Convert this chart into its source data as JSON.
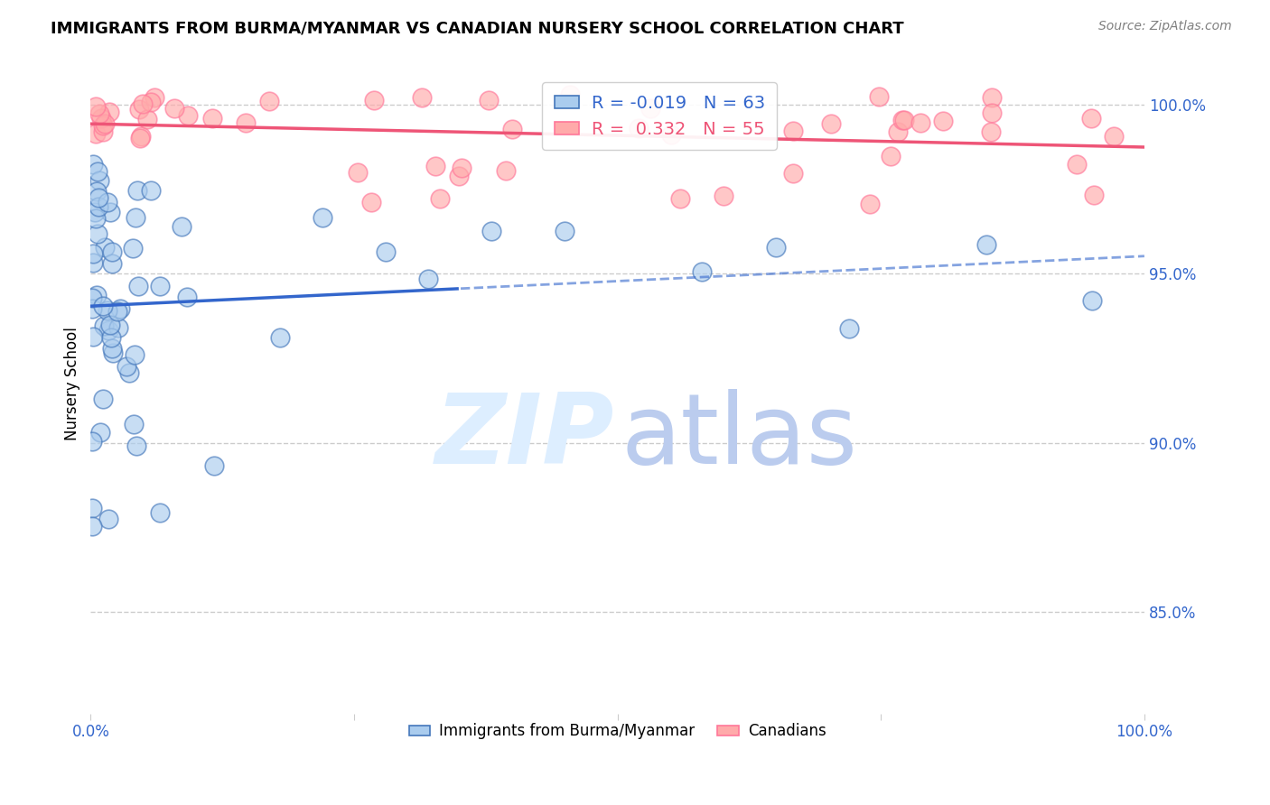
{
  "title": "IMMIGRANTS FROM BURMA/MYANMAR VS CANADIAN NURSERY SCHOOL CORRELATION CHART",
  "source": "Source: ZipAtlas.com",
  "ylabel": "Nursery School",
  "legend_label1": "Immigrants from Burma/Myanmar",
  "legend_label2": "Canadians",
  "r_blue": -0.019,
  "n_blue": 63,
  "r_pink": 0.332,
  "n_pink": 55,
  "ytick_labels": [
    "85.0%",
    "90.0%",
    "95.0%",
    "100.0%"
  ],
  "ytick_values": [
    0.85,
    0.9,
    0.95,
    1.0
  ],
  "xlim": [
    0.0,
    1.0
  ],
  "ylim": [
    0.82,
    1.015
  ],
  "blue_fill": "#AACCEE",
  "blue_edge": "#4477BB",
  "pink_fill": "#FFAAAA",
  "pink_edge": "#FF7799",
  "blue_line_color": "#3366CC",
  "pink_line_color": "#EE5577",
  "grid_color": "#CCCCCC",
  "watermark_zip_color": "#DDEEFF",
  "watermark_atlas_color": "#BBCCEE"
}
